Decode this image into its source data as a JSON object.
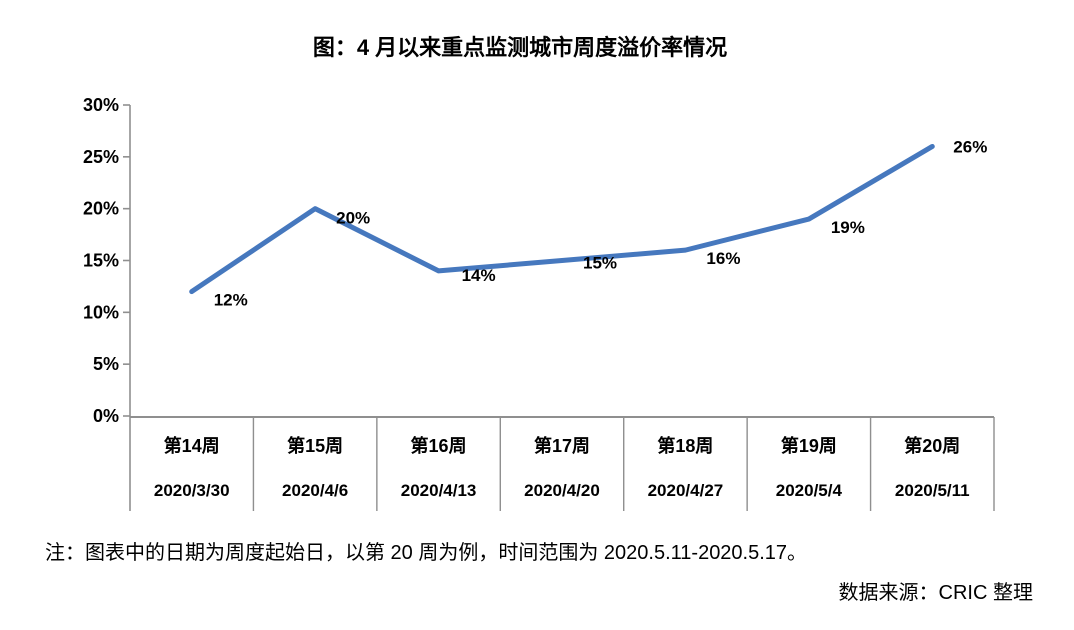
{
  "title": "图：4 月以来重点监测城市周度溢价率情况",
  "note": "注：图表中的日期为周度起始日，以第 20 周为例，时间范围为 2020.5.11-2020.5.17。",
  "source": "数据来源：CRIC 整理",
  "colors": {
    "line": "#4678BE",
    "axis": "#8f8f8f",
    "text": "#000000"
  },
  "chart_data": {
    "type": "line",
    "title": "图：4 月以来重点监测城市周度溢价率情况",
    "categories": [
      "第14周",
      "第15周",
      "第16周",
      "第17周",
      "第18周",
      "第19周",
      "第20周"
    ],
    "category_dates": [
      "2020/3/30",
      "2020/4/6",
      "2020/4/13",
      "2020/4/20",
      "2020/4/27",
      "2020/5/4",
      "2020/5/11"
    ],
    "values": [
      12,
      20,
      14,
      15,
      16,
      19,
      26
    ],
    "data_labels": [
      "12%",
      "20%",
      "14%",
      "15%",
      "16%",
      "19%",
      "26%"
    ],
    "xlabel": "",
    "ylabel": "",
    "ylim": [
      0,
      30
    ],
    "ytick_step": 5,
    "ytick_labels": [
      "0%",
      "5%",
      "10%",
      "15%",
      "20%",
      "25%",
      "30%"
    ],
    "grid": false,
    "legend": "none"
  }
}
